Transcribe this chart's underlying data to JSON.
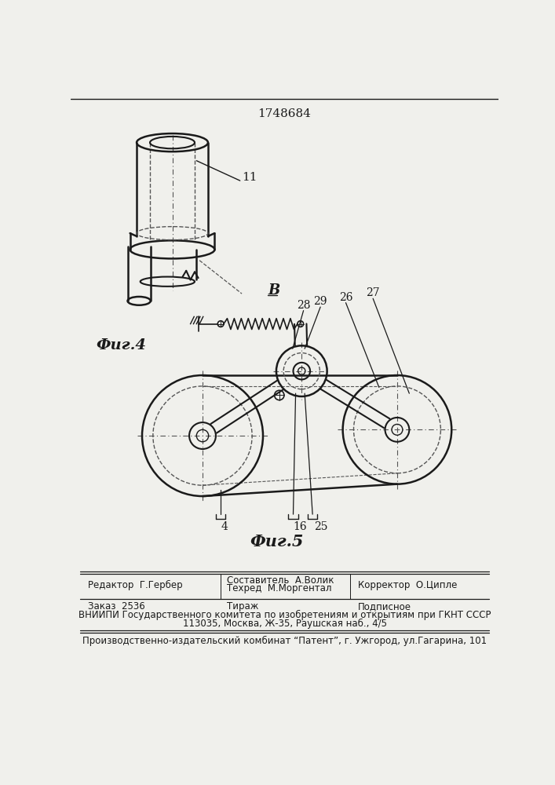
{
  "patent_number": "1748684",
  "fig4_label": "Фиг.4",
  "fig5_label": "Фиг.5",
  "label_B": "B",
  "label_11": "11",
  "labels_bottom": [
    "4",
    "16",
    "25"
  ],
  "labels_top_right": [
    "28",
    "29",
    "26",
    "27"
  ],
  "footer_line1_left": "Редактор  Г.Гербер",
  "footer_line1_mid1": "Составитель  А.Волик",
  "footer_line1_mid2": "Техред  М.Моргентал",
  "footer_line1_right": "Корректор  О.Ципле",
  "footer_line2_left": "Заказ  2536",
  "footer_line2_mid": "Тираж",
  "footer_line2_right": "Подписное",
  "footer_line3": "ВНИИПИ Государственного комитета по изобретениям и открытиям при ГКНТ СССР",
  "footer_line4": "113035, Москва, Ж-35, Раушская наб., 4/5",
  "footer_line5": "Производственно-издательский комбинат “Патент”, г. Ужгород, ул.Гагарина, 101",
  "bg_color": "#f0f0ec",
  "line_color": "#1a1a1a",
  "dashed_color": "#555555"
}
